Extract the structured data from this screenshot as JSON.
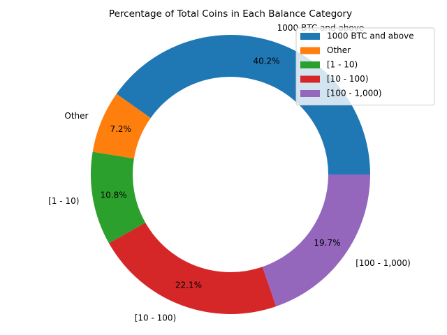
{
  "chart_data": {
    "type": "donut",
    "title": "Percentage of Total Coins in Each Balance Category",
    "categories": [
      "1000 BTC and above",
      "Other",
      "[1 - 10)",
      "[10 - 100)",
      "[100 - 1,000)"
    ],
    "values": [
      40.2,
      7.2,
      10.8,
      22.1,
      19.7
    ],
    "value_labels": [
      "40.2%",
      "7.2%",
      "10.8%",
      "22.1%",
      "19.7%"
    ],
    "colors": [
      "#1f77b4",
      "#ff7f0e",
      "#2ca02c",
      "#d62728",
      "#9467bd"
    ],
    "legend": "upper right"
  }
}
